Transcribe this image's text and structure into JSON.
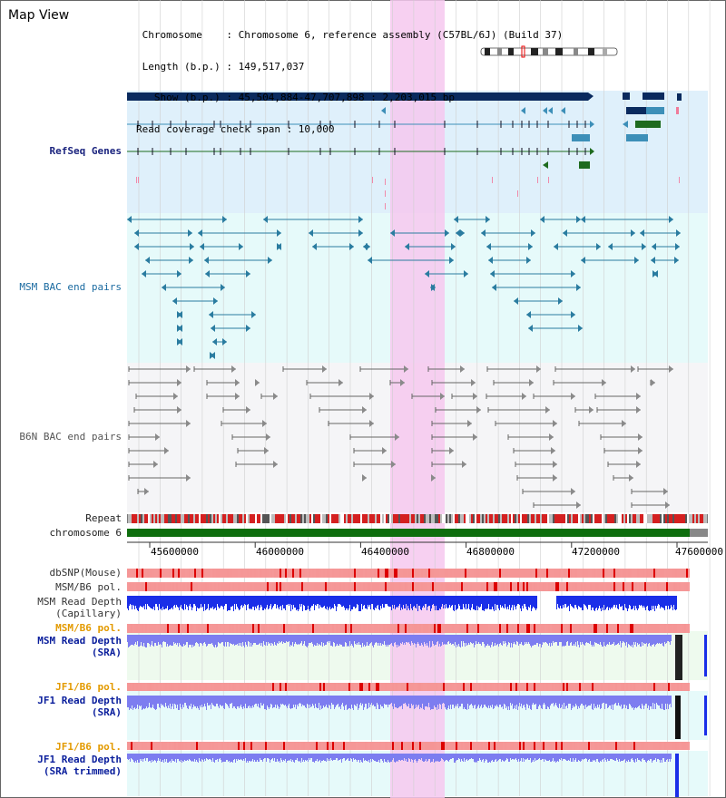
{
  "title": "Map View",
  "info": {
    "lines": [
      " Chromosome    : Chromosome 6, reference assembly (C57BL/6J) (Build 37)",
      " Length (b.p.) : 149,517,037",
      "   Show (b.p.) : 45,504,884-47,707,898 : 2,203,015 bp",
      "Read coverage check span : 10,000"
    ]
  },
  "tracks": {
    "refseq": "RefSeq Genes",
    "msm_bac": "MSM BAC end pairs",
    "b6n_bac": "B6N BAC end pairs",
    "repeat": "Repeat",
    "chromosome": "chromosome 6",
    "dbsnp": "dbSNP(Mouse)",
    "msm_b6_pol_1": "MSM/B6 pol.",
    "msm_read_depth_cap_1": "MSM Read Depth",
    "msm_read_depth_cap_2": "(Capillary)",
    "msm_b6_pol_2": "MSM/B6 pol.",
    "msm_read_depth_sra_1": "MSM Read Depth",
    "msm_read_depth_sra_2": "(SRA)",
    "jf1_b6_pol_1": "JF1/B6 pol.",
    "jf1_read_depth_sra_1": "JF1 Read Depth",
    "jf1_read_depth_sra_2": "(SRA)",
    "jf1_b6_pol_2": "JF1/B6 pol.",
    "jf1_read_depth_trim_1": "JF1 Read Depth",
    "jf1_read_depth_trim_2": "(SRA trimmed)"
  },
  "scale": {
    "ticks": [
      "45600000",
      "46000000",
      "46400000",
      "46800000",
      "47200000",
      "47600000"
    ]
  },
  "colors": {
    "highlight": "#f6c8ee",
    "refseq_bg": "#dff0fb",
    "msm_bg": "#e6fafa",
    "b6n_bg": "#f5f5f7",
    "gene_dark": "#0a2a5e",
    "gene_green": "#1e6b1e",
    "gene_teal": "#3d8fb8",
    "msm_line": "#2a7ca0",
    "b6n_line": "#666666",
    "chrom_green": "#0e6e0e",
    "repeat_red": "#d42020",
    "snp_red": "#e85555",
    "depth_blue": "#1a2ee8",
    "depth_light": "#7d7df0",
    "depth_bg_green": "#eefaee",
    "depth_bg_cyan": "#e6fafa"
  }
}
